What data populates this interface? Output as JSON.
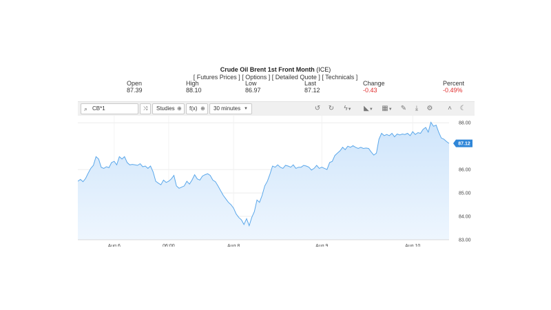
{
  "header": {
    "instrument_name": "Crude Oil Brent 1st Front Month",
    "exchange": "(ICE)",
    "links": "[ Futures Prices ] [ Options ] [ Detailed Quote ] [ Technicals ]"
  },
  "stats": [
    {
      "label": "Open",
      "value": "87.39",
      "negative": false
    },
    {
      "label": "High",
      "value": "88.10",
      "negative": false
    },
    {
      "label": "Low",
      "value": "86.97",
      "negative": false
    },
    {
      "label": "Last",
      "value": "87.12",
      "negative": false
    },
    {
      "label": "Change",
      "value": "-0.43",
      "negative": true
    },
    {
      "label": "Percent",
      "value": "-0.49%",
      "negative": true
    }
  ],
  "toolbar": {
    "symbol": "CB*1",
    "studies_label": "Studies",
    "fx_label": "f(x)",
    "interval_label": "30 minutes"
  },
  "colors": {
    "line": "#5aa7ea",
    "fill_top": "#cfe5fb",
    "fill_bottom": "#eef6fe",
    "badge": "#2f86d8",
    "negative": "#e02b2b"
  },
  "chart_data": {
    "type": "area",
    "ylim": [
      83.0,
      88.3
    ],
    "y_ticks": [
      "88.00",
      "86.00",
      "85.00",
      "84.00",
      "83.00"
    ],
    "x_tick_labels": [
      "Aug 6",
      "06:00",
      "Aug 8",
      "Aug 9",
      "Aug 10"
    ],
    "x_tick_index": [
      14,
      35,
      60,
      94,
      129
    ],
    "last_price": "87.12",
    "last_value": 87.12,
    "values": [
      85.5,
      85.58,
      85.48,
      85.62,
      85.85,
      86.05,
      86.18,
      86.55,
      86.45,
      86.1,
      86.05,
      86.12,
      86.08,
      86.3,
      86.35,
      86.2,
      86.55,
      86.45,
      86.55,
      86.3,
      86.2,
      86.22,
      86.2,
      86.18,
      86.25,
      86.12,
      86.15,
      86.05,
      86.15,
      85.9,
      85.5,
      85.42,
      85.35,
      85.55,
      85.45,
      85.5,
      85.6,
      85.75,
      85.3,
      85.2,
      85.25,
      85.3,
      85.5,
      85.38,
      85.55,
      85.78,
      85.6,
      85.55,
      85.72,
      85.78,
      85.82,
      85.75,
      85.55,
      85.48,
      85.3,
      85.1,
      84.9,
      84.75,
      84.6,
      84.5,
      84.35,
      84.1,
      83.95,
      83.85,
      83.65,
      83.9,
      83.6,
      83.95,
      84.2,
      84.7,
      84.6,
      84.9,
      85.3,
      85.5,
      85.8,
      86.15,
      86.1,
      86.2,
      86.1,
      86.05,
      86.18,
      86.15,
      86.1,
      86.2,
      86.05,
      86.1,
      86.1,
      86.18,
      86.15,
      86.1,
      85.98,
      86.05,
      86.18,
      86.05,
      86.1,
      86.05,
      86.0,
      86.3,
      86.35,
      86.6,
      86.7,
      86.8,
      86.95,
      86.85,
      87.0,
      86.95,
      87.02,
      86.95,
      86.9,
      86.95,
      86.9,
      86.92,
      86.9,
      86.75,
      86.62,
      86.7,
      87.3,
      87.55,
      87.45,
      87.5,
      87.45,
      87.55,
      87.4,
      87.52,
      87.48,
      87.52,
      87.5,
      87.55,
      87.45,
      87.62,
      87.5,
      87.58,
      87.55,
      87.72,
      87.8,
      87.6,
      88.02,
      87.85,
      87.9,
      87.6,
      87.35,
      87.3,
      87.2,
      87.12
    ]
  }
}
